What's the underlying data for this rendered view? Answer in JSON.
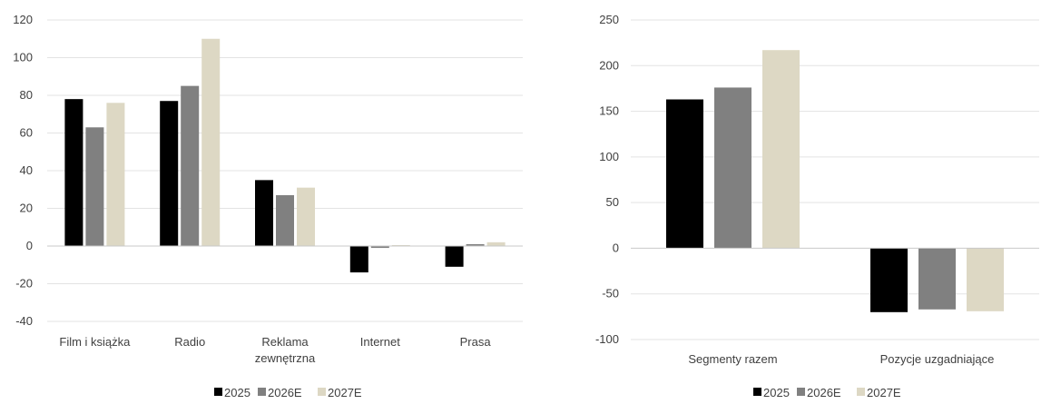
{
  "chart_data": [
    {
      "type": "bar",
      "categories": [
        [
          "Film i książka"
        ],
        [
          "Radio"
        ],
        [
          "Reklama",
          "zewnętrzna"
        ],
        [
          "Internet"
        ],
        [
          "Prasa"
        ]
      ],
      "series": [
        {
          "name": "2025",
          "color": "#000000",
          "values": [
            78,
            77,
            35,
            -14,
            -11
          ]
        },
        {
          "name": "2026E",
          "color": "#808080",
          "values": [
            63,
            85,
            27,
            -1,
            1
          ]
        },
        {
          "name": "2027E",
          "color": "#ddd8c4",
          "values": [
            76,
            110,
            31,
            0.5,
            2
          ]
        }
      ],
      "ylim": [
        -40,
        120
      ],
      "yticks": [
        -40,
        -20,
        0,
        20,
        40,
        60,
        80,
        100,
        120
      ],
      "grid": true,
      "legend_position": "bottom"
    },
    {
      "type": "bar",
      "categories": [
        [
          "Segmenty razem"
        ],
        [
          "Pozycje uzgadniające"
        ]
      ],
      "series": [
        {
          "name": "2025",
          "color": "#000000",
          "values": [
            163,
            -70
          ]
        },
        {
          "name": "2026E",
          "color": "#808080",
          "values": [
            176,
            -67
          ]
        },
        {
          "name": "2027E",
          "color": "#ddd8c4",
          "values": [
            217,
            -69
          ]
        }
      ],
      "ylim": [
        -100,
        250
      ],
      "yticks": [
        -100,
        -50,
        0,
        50,
        100,
        150,
        200,
        250
      ],
      "grid": true,
      "legend_position": "bottom"
    }
  ]
}
